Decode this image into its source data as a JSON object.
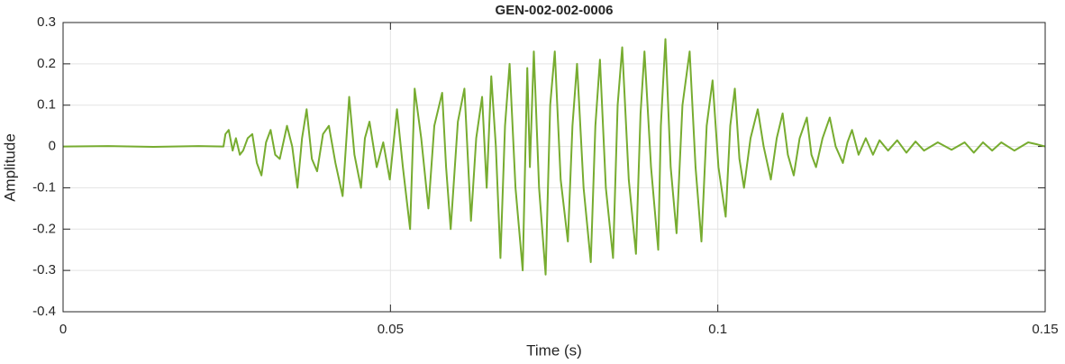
{
  "chart_data": {
    "type": "line",
    "title": "GEN-002-002-0006",
    "xlabel": "Time (s)",
    "ylabel": "Amplitude",
    "color": "#77ac30",
    "grid": true,
    "xlim": [
      0,
      0.15
    ],
    "ylim": [
      -0.4,
      0.3
    ],
    "xticks": [
      0,
      0.05,
      0.1,
      0.15
    ],
    "yticks": [
      -0.4,
      -0.3,
      -0.2,
      -0.1,
      0,
      0.1,
      0.2,
      0.3
    ],
    "x": [
      0,
      0.0069,
      0.0138,
      0.0207,
      0.0245,
      0.0248,
      0.0253,
      0.0259,
      0.0264,
      0.027,
      0.0275,
      0.0282,
      0.0289,
      0.0296,
      0.0303,
      0.031,
      0.0317,
      0.0324,
      0.0331,
      0.0342,
      0.035,
      0.0358,
      0.0365,
      0.0372,
      0.038,
      0.0388,
      0.0397,
      0.0406,
      0.0416,
      0.0427,
      0.0437,
      0.0445,
      0.0455,
      0.0461,
      0.0468,
      0.0479,
      0.0489,
      0.0499,
      0.051,
      0.0519,
      0.053,
      0.0537,
      0.0547,
      0.0558,
      0.0567,
      0.0579,
      0.0585,
      0.0592,
      0.0603,
      0.0613,
      0.0623,
      0.0631,
      0.064,
      0.0647,
      0.0654,
      0.0661,
      0.0668,
      0.0675,
      0.0682,
      0.0691,
      0.0702,
      0.0709,
      0.0713,
      0.0719,
      0.0727,
      0.0737,
      0.0744,
      0.0751,
      0.076,
      0.0771,
      0.0778,
      0.0785,
      0.0795,
      0.0806,
      0.0813,
      0.082,
      0.0829,
      0.084,
      0.0847,
      0.0854,
      0.0864,
      0.0875,
      0.0882,
      0.0888,
      0.0898,
      0.0909,
      0.0913,
      0.092,
      0.0928,
      0.0937,
      0.0946,
      0.0957,
      0.0966,
      0.0975,
      0.0983,
      0.0992,
      0.1001,
      0.1012,
      0.1019,
      0.1026,
      0.1033,
      0.104,
      0.105,
      0.1061,
      0.107,
      0.1081,
      0.109,
      0.1099,
      0.1107,
      0.1116,
      0.1125,
      0.1136,
      0.1143,
      0.115,
      0.116,
      0.1171,
      0.118,
      0.1191,
      0.1198,
      0.1205,
      0.1215,
      0.1226,
      0.1237,
      0.1247,
      0.126,
      0.1274,
      0.1288,
      0.1302,
      0.1315,
      0.1336,
      0.1357,
      0.1377,
      0.1391,
      0.1405,
      0.1419,
      0.1433,
      0.1453,
      0.1474,
      0.1488,
      0.15
    ],
    "values": [
      0,
      0.001,
      -0.001,
      0.001,
      0,
      0.03,
      0.04,
      -0.01,
      0.02,
      -0.02,
      -0.01,
      0.02,
      0.03,
      -0.04,
      -0.07,
      0.01,
      0.04,
      -0.02,
      -0.03,
      0.05,
      0.0,
      -0.1,
      0.02,
      0.09,
      -0.03,
      -0.06,
      0.03,
      0.05,
      -0.04,
      -0.12,
      0.12,
      -0.02,
      -0.1,
      0.02,
      0.06,
      -0.05,
      0.01,
      -0.08,
      0.09,
      -0.05,
      -0.2,
      0.14,
      0.02,
      -0.15,
      0.05,
      0.13,
      -0.05,
      -0.2,
      0.06,
      0.14,
      -0.18,
      0.02,
      0.12,
      -0.1,
      0.17,
      0.0,
      -0.27,
      0.05,
      0.2,
      -0.1,
      -0.3,
      0.19,
      -0.05,
      0.23,
      -0.1,
      -0.31,
      0.1,
      0.23,
      -0.08,
      -0.23,
      0.05,
      0.2,
      -0.1,
      -0.28,
      0.05,
      0.21,
      -0.1,
      -0.27,
      0.1,
      0.24,
      -0.08,
      -0.26,
      0.08,
      0.23,
      -0.05,
      -0.25,
      0.05,
      0.26,
      -0.05,
      -0.21,
      0.1,
      0.23,
      -0.05,
      -0.23,
      0.05,
      0.16,
      -0.05,
      -0.17,
      0.05,
      0.14,
      -0.03,
      -0.1,
      0.02,
      0.09,
      0.0,
      -0.08,
      0.02,
      0.08,
      -0.02,
      -0.07,
      0.02,
      0.07,
      -0.02,
      -0.05,
      0.02,
      0.07,
      0.0,
      -0.04,
      0.01,
      0.04,
      -0.02,
      0.02,
      -0.02,
      0.015,
      -0.01,
      0.015,
      -0.015,
      0.012,
      -0.01,
      0.01,
      -0.008,
      0.01,
      -0.015,
      0.01,
      -0.01,
      0.01,
      -0.01,
      0.01,
      0.005,
      0
    ]
  }
}
